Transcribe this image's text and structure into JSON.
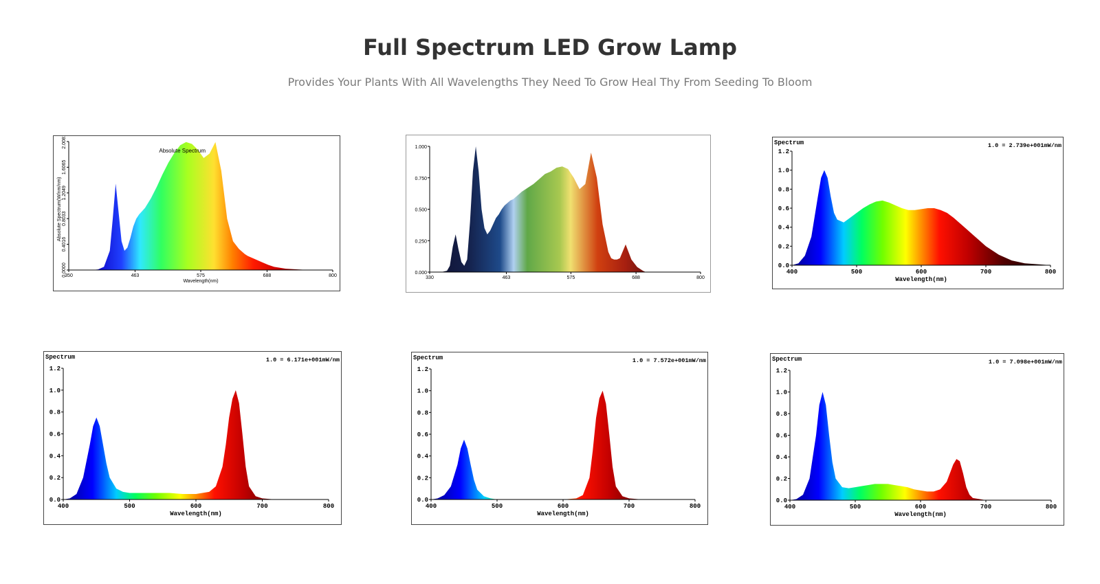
{
  "page": {
    "title": "Full Spectrum LED Grow Lamp",
    "subtitle": "Provides Your Plants With All Wavelengths They Need To Grow Heal Thy From Seeding To Bloom"
  },
  "chart_data": [
    {
      "type": "area",
      "style": "absolute",
      "title": "Absolute Spectrum",
      "xlabel": "Wavelength(nm)",
      "ylabel": "Absolute Spectrum(W/nm/nm)",
      "xlim": [
        350,
        800
      ],
      "ylim": [
        0,
        2.0081
      ],
      "xticks": [
        {
          "v": 350,
          "label": "350"
        },
        {
          "v": 463,
          "label": "463"
        },
        {
          "v": 575,
          "label": "575"
        },
        {
          "v": 688,
          "label": "688"
        },
        {
          "v": 800,
          "label": "800"
        }
      ],
      "yticks": [
        {
          "v": 0,
          "label": "0.0000"
        },
        {
          "v": 0.4016,
          "label": "0.4016"
        },
        {
          "v": 0.8033,
          "label": "0.8033"
        },
        {
          "v": 1.2049,
          "label": "1.2049"
        },
        {
          "v": 1.6065,
          "label": "1.6065"
        },
        {
          "v": 2.0081,
          "label": "2.0081"
        }
      ],
      "gradient": "rainbow",
      "x": [
        350,
        370,
        390,
        400,
        410,
        420,
        425,
        430,
        435,
        440,
        445,
        450,
        455,
        460,
        465,
        470,
        475,
        480,
        490,
        500,
        510,
        520,
        530,
        540,
        550,
        560,
        570,
        580,
        590,
        600,
        610,
        620,
        630,
        640,
        650,
        655,
        660,
        665,
        670,
        680,
        690,
        700,
        720,
        740,
        760,
        780,
        800
      ],
      "y": [
        0,
        0,
        0,
        0.01,
        0.05,
        0.3,
        0.8,
        1.35,
        0.9,
        0.45,
        0.3,
        0.35,
        0.5,
        0.68,
        0.8,
        0.87,
        0.92,
        0.97,
        1.12,
        1.3,
        1.5,
        1.68,
        1.83,
        1.95,
        2.0,
        1.97,
        1.88,
        1.75,
        1.82,
        2.0,
        1.55,
        0.8,
        0.45,
        0.33,
        0.25,
        0.22,
        0.2,
        0.18,
        0.16,
        0.12,
        0.08,
        0.05,
        0.02,
        0.01,
        0,
        0,
        0
      ]
    },
    {
      "type": "area",
      "style": "relative",
      "title": "",
      "xlabel": "",
      "ylabel": "",
      "xlim": [
        330,
        800
      ],
      "ylim": [
        0,
        1.0
      ],
      "xticks": [
        {
          "v": 330,
          "label": "330"
        },
        {
          "v": 463,
          "label": "463"
        },
        {
          "v": 575,
          "label": "575"
        },
        {
          "v": 688,
          "label": "688"
        },
        {
          "v": 800,
          "label": "800"
        }
      ],
      "yticks": [
        {
          "v": 0,
          "label": "0.000"
        },
        {
          "v": 0.25,
          "label": "0.250"
        },
        {
          "v": 0.5,
          "label": "0.500"
        },
        {
          "v": 0.75,
          "label": "0.750"
        },
        {
          "v": 1.0,
          "label": "1.000"
        }
      ],
      "gradient": "muted",
      "x": [
        330,
        350,
        360,
        365,
        370,
        375,
        380,
        385,
        390,
        395,
        400,
        405,
        410,
        415,
        420,
        425,
        430,
        435,
        440,
        445,
        450,
        455,
        460,
        465,
        470,
        475,
        480,
        490,
        500,
        510,
        520,
        530,
        540,
        550,
        560,
        570,
        580,
        590,
        600,
        610,
        620,
        630,
        640,
        645,
        650,
        655,
        660,
        670,
        680,
        690,
        700,
        705,
        710,
        715,
        720,
        730,
        740,
        760,
        800
      ],
      "y": [
        0,
        0,
        0.01,
        0.05,
        0.2,
        0.3,
        0.18,
        0.08,
        0.05,
        0.1,
        0.4,
        0.8,
        1.0,
        0.8,
        0.5,
        0.35,
        0.3,
        0.33,
        0.38,
        0.43,
        0.46,
        0.5,
        0.53,
        0.55,
        0.57,
        0.58,
        0.6,
        0.64,
        0.67,
        0.7,
        0.74,
        0.78,
        0.8,
        0.83,
        0.84,
        0.82,
        0.75,
        0.66,
        0.7,
        0.95,
        0.75,
        0.38,
        0.16,
        0.11,
        0.1,
        0.1,
        0.11,
        0.22,
        0.1,
        0.04,
        0.01,
        0,
        0,
        0,
        0,
        0,
        0,
        0,
        0
      ]
    },
    {
      "type": "area",
      "style": "mono",
      "title": "Spectrum",
      "annotation": "1.0 = 2.739e+001mW/nm",
      "xlabel": "Wavelength(nm)",
      "ylabel": "",
      "xlim": [
        400,
        800
      ],
      "ylim": [
        0,
        1.2
      ],
      "xticks": [
        {
          "v": 400,
          "label": "400"
        },
        {
          "v": 500,
          "label": "500"
        },
        {
          "v": 600,
          "label": "600"
        },
        {
          "v": 700,
          "label": "700"
        },
        {
          "v": 800,
          "label": "800"
        }
      ],
      "yticks": [
        {
          "v": 0,
          "label": "0.0"
        },
        {
          "v": 0.2,
          "label": "0.2"
        },
        {
          "v": 0.4,
          "label": "0.4"
        },
        {
          "v": 0.6,
          "label": "0.6"
        },
        {
          "v": 0.8,
          "label": "0.8"
        },
        {
          "v": 1.0,
          "label": "1.0"
        },
        {
          "v": 1.2,
          "label": "1.2"
        }
      ],
      "gradient": "spectral",
      "x": [
        400,
        410,
        420,
        430,
        440,
        445,
        450,
        455,
        460,
        465,
        470,
        480,
        490,
        500,
        510,
        520,
        530,
        540,
        550,
        560,
        570,
        580,
        590,
        600,
        610,
        620,
        630,
        640,
        650,
        660,
        670,
        680,
        690,
        700,
        720,
        740,
        760,
        780,
        800
      ],
      "y": [
        0,
        0.02,
        0.1,
        0.3,
        0.72,
        0.92,
        1.0,
        0.92,
        0.72,
        0.55,
        0.48,
        0.45,
        0.5,
        0.55,
        0.6,
        0.64,
        0.67,
        0.68,
        0.66,
        0.63,
        0.6,
        0.58,
        0.58,
        0.59,
        0.6,
        0.6,
        0.58,
        0.55,
        0.5,
        0.44,
        0.38,
        0.32,
        0.26,
        0.2,
        0.11,
        0.05,
        0.02,
        0.01,
        0
      ]
    },
    {
      "type": "area",
      "style": "mono",
      "title": "Spectrum",
      "annotation": "1.0 = 6.171e+001mW/nm",
      "xlabel": "Wavelength(nm)",
      "ylabel": "",
      "xlim": [
        400,
        800
      ],
      "ylim": [
        0,
        1.2
      ],
      "xticks": [
        {
          "v": 400,
          "label": "400"
        },
        {
          "v": 500,
          "label": "500"
        },
        {
          "v": 600,
          "label": "600"
        },
        {
          "v": 700,
          "label": "700"
        },
        {
          "v": 800,
          "label": "800"
        }
      ],
      "yticks": [
        {
          "v": 0,
          "label": "0.0"
        },
        {
          "v": 0.2,
          "label": "0.2"
        },
        {
          "v": 0.4,
          "label": "0.4"
        },
        {
          "v": 0.6,
          "label": "0.6"
        },
        {
          "v": 0.8,
          "label": "0.8"
        },
        {
          "v": 1.0,
          "label": "1.0"
        },
        {
          "v": 1.2,
          "label": "1.2"
        }
      ],
      "gradient": "spectral",
      "x": [
        400,
        410,
        420,
        430,
        440,
        445,
        450,
        455,
        460,
        465,
        470,
        480,
        490,
        500,
        520,
        540,
        560,
        580,
        600,
        620,
        630,
        640,
        645,
        650,
        655,
        660,
        665,
        670,
        675,
        680,
        690,
        700,
        720,
        760,
        800
      ],
      "y": [
        0,
        0.01,
        0.05,
        0.2,
        0.5,
        0.67,
        0.75,
        0.67,
        0.5,
        0.33,
        0.2,
        0.1,
        0.07,
        0.06,
        0.06,
        0.06,
        0.06,
        0.05,
        0.05,
        0.07,
        0.12,
        0.3,
        0.5,
        0.75,
        0.92,
        1.0,
        0.88,
        0.6,
        0.3,
        0.12,
        0.03,
        0.01,
        0,
        0,
        0
      ]
    },
    {
      "type": "area",
      "style": "mono",
      "title": "Spectrum",
      "annotation": "1.0 = 7.572e+001mW/nm",
      "xlabel": "Wavelength(nm)",
      "ylabel": "",
      "xlim": [
        400,
        800
      ],
      "ylim": [
        0,
        1.2
      ],
      "xticks": [
        {
          "v": 400,
          "label": "400"
        },
        {
          "v": 500,
          "label": "500"
        },
        {
          "v": 600,
          "label": "600"
        },
        {
          "v": 700,
          "label": "700"
        },
        {
          "v": 800,
          "label": "800"
        }
      ],
      "yticks": [
        {
          "v": 0,
          "label": "0.0"
        },
        {
          "v": 0.2,
          "label": "0.2"
        },
        {
          "v": 0.4,
          "label": "0.4"
        },
        {
          "v": 0.6,
          "label": "0.6"
        },
        {
          "v": 0.8,
          "label": "0.8"
        },
        {
          "v": 1.0,
          "label": "1.0"
        },
        {
          "v": 1.2,
          "label": "1.2"
        }
      ],
      "gradient": "spectral",
      "x": [
        400,
        410,
        420,
        430,
        440,
        445,
        450,
        455,
        460,
        465,
        470,
        480,
        490,
        500,
        520,
        560,
        600,
        620,
        630,
        640,
        645,
        650,
        655,
        660,
        665,
        670,
        675,
        680,
        690,
        700,
        720,
        760,
        800
      ],
      "y": [
        0,
        0.01,
        0.04,
        0.12,
        0.32,
        0.47,
        0.55,
        0.47,
        0.32,
        0.18,
        0.09,
        0.03,
        0.01,
        0,
        0,
        0,
        0,
        0.01,
        0.04,
        0.2,
        0.45,
        0.75,
        0.93,
        1.0,
        0.88,
        0.6,
        0.3,
        0.12,
        0.03,
        0.01,
        0,
        0,
        0
      ]
    },
    {
      "type": "area",
      "style": "mono",
      "title": "Spectrum",
      "annotation": "1.0 = 7.098e+001mW/nm",
      "xlabel": "Wavelength(nm)",
      "ylabel": "",
      "xlim": [
        400,
        800
      ],
      "ylim": [
        0,
        1.2
      ],
      "xticks": [
        {
          "v": 400,
          "label": "400"
        },
        {
          "v": 500,
          "label": "500"
        },
        {
          "v": 600,
          "label": "600"
        },
        {
          "v": 700,
          "label": "700"
        },
        {
          "v": 800,
          "label": "800"
        }
      ],
      "yticks": [
        {
          "v": 0,
          "label": "0.0"
        },
        {
          "v": 0.2,
          "label": "0.2"
        },
        {
          "v": 0.4,
          "label": "0.4"
        },
        {
          "v": 0.6,
          "label": "0.6"
        },
        {
          "v": 0.8,
          "label": "0.8"
        },
        {
          "v": 1.0,
          "label": "1.0"
        },
        {
          "v": 1.2,
          "label": "1.2"
        }
      ],
      "gradient": "spectral",
      "x": [
        400,
        410,
        420,
        430,
        440,
        445,
        450,
        455,
        460,
        465,
        470,
        480,
        490,
        500,
        510,
        520,
        530,
        540,
        550,
        560,
        570,
        580,
        590,
        600,
        610,
        620,
        630,
        640,
        645,
        650,
        655,
        660,
        665,
        670,
        675,
        680,
        690,
        700,
        720,
        760,
        800
      ],
      "y": [
        0,
        0.01,
        0.05,
        0.2,
        0.6,
        0.88,
        1.0,
        0.88,
        0.6,
        0.35,
        0.2,
        0.12,
        0.11,
        0.12,
        0.13,
        0.14,
        0.15,
        0.15,
        0.15,
        0.14,
        0.13,
        0.12,
        0.1,
        0.09,
        0.08,
        0.08,
        0.1,
        0.17,
        0.25,
        0.33,
        0.38,
        0.36,
        0.25,
        0.12,
        0.05,
        0.02,
        0.01,
        0,
        0,
        0,
        0
      ]
    }
  ]
}
